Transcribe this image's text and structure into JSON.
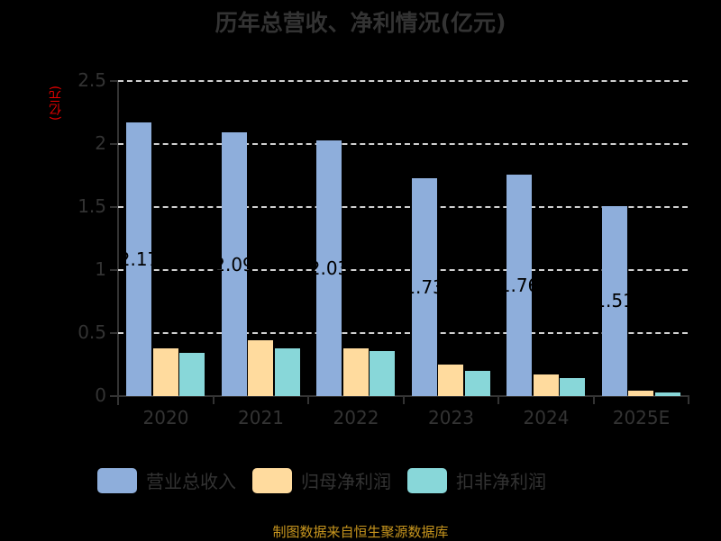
{
  "title": "历年总营收、净利情况(亿元)",
  "y_unit_label": "(亿元)",
  "source": "制图数据来自恒生聚源数据库",
  "legend": [
    {
      "label": "营业总收入",
      "color": "#8eaedb"
    },
    {
      "label": "归母净利润",
      "color": "#ffdb9e"
    },
    {
      "label": "扣非净利润",
      "color": "#88d7d9"
    }
  ],
  "y_ticks": [
    "0",
    "0.5",
    "1",
    "1.5",
    "2",
    "2.5"
  ],
  "x_ticks": [
    "2020",
    "2021",
    "2022",
    "2023",
    "2024",
    "2025E"
  ],
  "bar_labels": [
    "2.17",
    "2.09",
    "2.03",
    "1.73",
    "1.76",
    "1.51"
  ],
  "chart_data": {
    "type": "bar",
    "title": "历年总营收、净利情况(亿元)",
    "xlabel": "",
    "ylabel": "(亿元)",
    "ylim": [
      0,
      2.5
    ],
    "grid": true,
    "legend_position": "bottom",
    "categories": [
      "2020",
      "2021",
      "2022",
      "2023",
      "2024",
      "2025E"
    ],
    "series": [
      {
        "name": "营业总收入",
        "color": "#8eaedb",
        "values": [
          2.17,
          2.09,
          2.03,
          1.73,
          1.76,
          1.51
        ]
      },
      {
        "name": "归母净利润",
        "color": "#ffdb9e",
        "values": [
          0.38,
          0.44,
          0.38,
          0.25,
          0.17,
          0.04
        ]
      },
      {
        "name": "扣非净利润",
        "color": "#88d7d9",
        "values": [
          0.34,
          0.38,
          0.36,
          0.2,
          0.14,
          0.03
        ]
      }
    ]
  }
}
